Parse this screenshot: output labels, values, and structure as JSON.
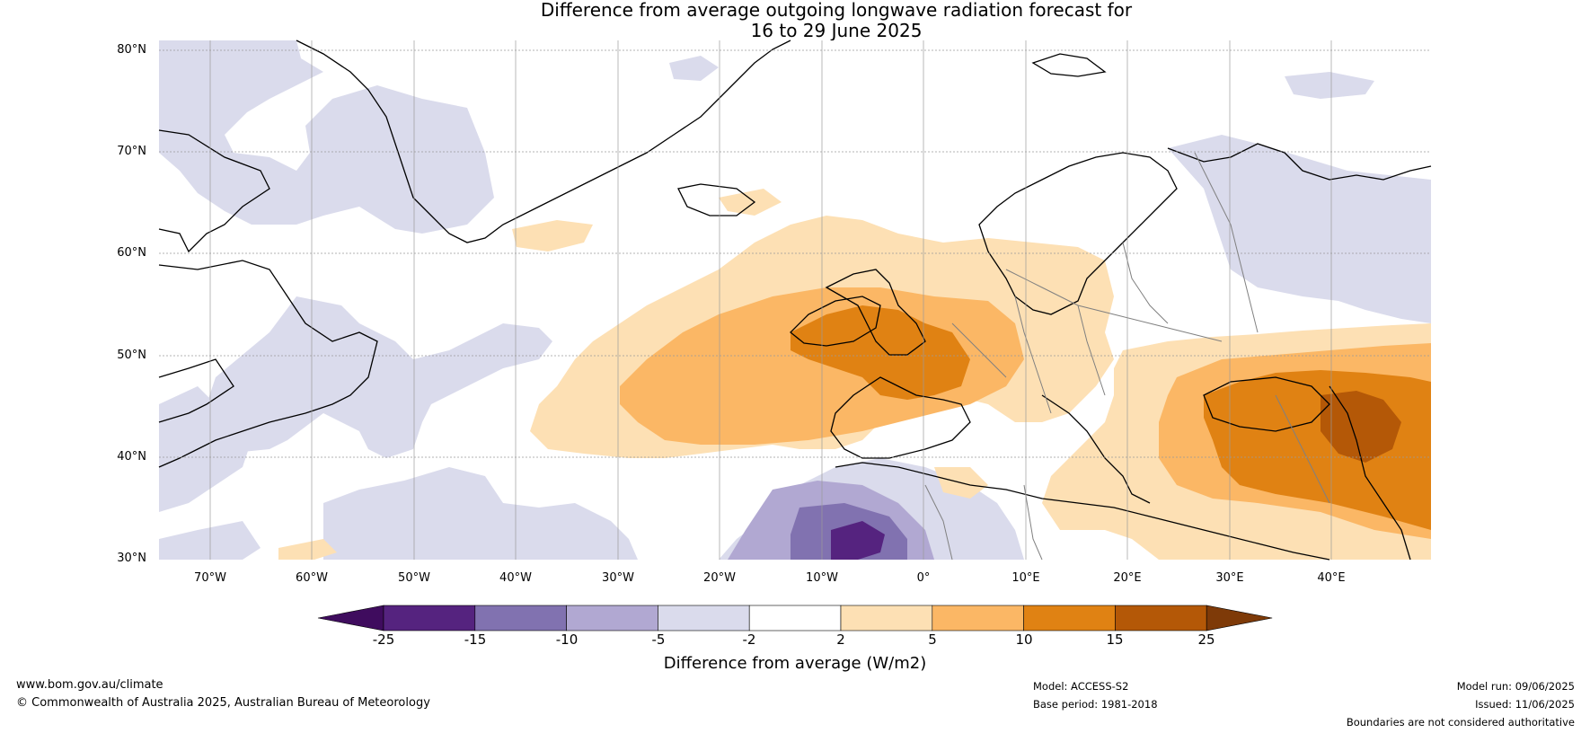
{
  "title": {
    "line1": "Difference from average outgoing longwave radiation forecast for",
    "line2": "16 to 29 June 2025"
  },
  "map": {
    "lat_labels": [
      "80°N",
      "70°N",
      "60°N",
      "50°N",
      "40°N",
      "30°N"
    ],
    "lon_labels": [
      "70°W",
      "60°W",
      "50°W",
      "40°W",
      "30°W",
      "20°W",
      "10°W",
      "0°",
      "10°E",
      "20°E",
      "30°E",
      "40°E"
    ]
  },
  "colorbar": {
    "ticks": [
      "-25",
      "-15",
      "-10",
      "-5",
      "-2",
      "2",
      "5",
      "10",
      "15",
      "25"
    ],
    "colors": [
      "#3f0c5e",
      "#55237f",
      "#8172b0",
      "#b1a8d2",
      "#dadbec",
      "#ffffff",
      "#fde0b4",
      "#fbb765",
      "#e08213",
      "#b45807",
      "#7e3a08"
    ],
    "title": "Difference from average (W/m2)"
  },
  "footer": {
    "url": "www.bom.gov.au/climate",
    "copyright": "© Commonwealth of Australia 2025, Australian Bureau of Meteorology",
    "model": "Model: ACCESS-S2",
    "base_period": "Base period: 1981-2018",
    "model_run": "Model run: 09/06/2025",
    "issued": "Issued: 11/06/2025",
    "disclaimer": "Boundaries are not considered authoritative"
  }
}
